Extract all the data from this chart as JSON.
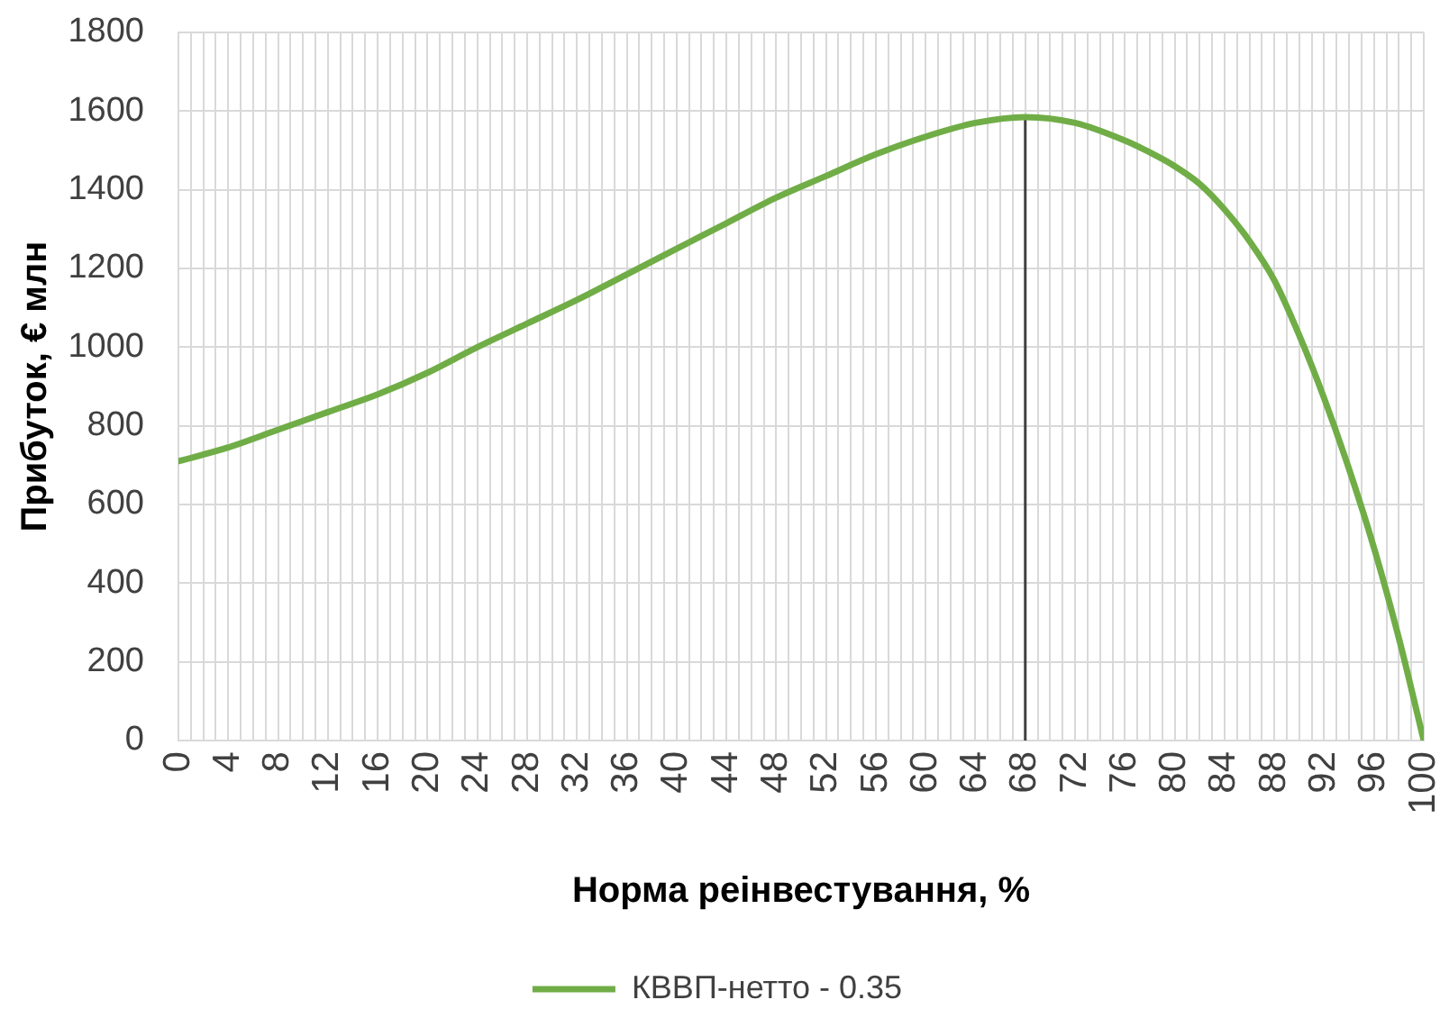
{
  "chart_data": {
    "type": "line",
    "xlabel": "Норма реінвестування, %",
    "ylabel": "Прибуток, € млн",
    "series": [
      {
        "name": "КВВП-нетто - 0.35",
        "color": "#70ad47",
        "x": [
          0,
          4,
          8,
          12,
          16,
          20,
          24,
          28,
          32,
          36,
          40,
          44,
          48,
          52,
          56,
          60,
          64,
          68,
          72,
          76,
          78,
          80,
          82,
          84,
          86,
          88,
          90,
          92,
          94,
          96,
          98,
          100
        ],
        "values": [
          710,
          745,
          790,
          835,
          880,
          935,
          1000,
          1060,
          1120,
          1185,
          1250,
          1315,
          1380,
          1435,
          1490,
          1535,
          1570,
          1585,
          1570,
          1525,
          1495,
          1460,
          1415,
          1350,
          1270,
          1170,
          1030,
          870,
          690,
          490,
          260,
          0
        ]
      },
      {
        "type": "line",
        "color": "#404040",
        "x": [
          68,
          68
        ],
        "values": [
          0,
          1585
        ]
      }
    ],
    "xlim": [
      0,
      100
    ],
    "xticks": [
      0,
      {
        "value": 1,
        "label": null
      },
      {
        "value": 2,
        "label": null
      },
      {
        "value": 3,
        "label": null
      },
      4,
      {
        "value": 5,
        "label": null
      },
      {
        "value": 6,
        "label": null
      },
      {
        "value": 7,
        "label": null
      },
      8,
      {
        "value": 9,
        "label": null
      },
      {
        "value": 10,
        "label": null
      },
      {
        "value": 11,
        "label": null
      },
      12,
      {
        "value": 13,
        "label": null
      },
      {
        "value": 14,
        "label": null
      },
      {
        "value": 15,
        "label": null
      },
      16,
      {
        "value": 17,
        "label": null
      },
      {
        "value": 18,
        "label": null
      },
      {
        "value": 19,
        "label": null
      },
      20,
      {
        "value": 21,
        "label": null
      },
      {
        "value": 22,
        "label": null
      },
      {
        "value": 23,
        "label": null
      },
      24,
      {
        "value": 25,
        "label": null
      },
      {
        "value": 26,
        "label": null
      },
      {
        "value": 27,
        "label": null
      },
      28,
      {
        "value": 29,
        "label": null
      },
      {
        "value": 30,
        "label": null
      },
      {
        "value": 31,
        "label": null
      },
      32,
      {
        "value": 33,
        "label": null
      },
      {
        "value": 34,
        "label": null
      },
      {
        "value": 35,
        "label": null
      },
      36,
      {
        "value": 37,
        "label": null
      },
      {
        "value": 38,
        "label": null
      },
      {
        "value": 39,
        "label": null
      },
      40,
      {
        "value": 41,
        "label": null
      },
      {
        "value": 42,
        "label": null
      },
      {
        "value": 43,
        "label": null
      },
      44,
      {
        "value": 45,
        "label": null
      },
      {
        "value": 46,
        "label": null
      },
      {
        "value": 47,
        "label": null
      },
      48,
      {
        "value": 49,
        "label": null
      },
      {
        "value": 50,
        "label": null
      },
      {
        "value": 51,
        "label": null
      },
      52,
      {
        "value": 53,
        "label": null
      },
      {
        "value": 54,
        "label": null
      },
      {
        "value": 55,
        "label": null
      },
      56,
      {
        "value": 57,
        "label": null
      },
      {
        "value": 58,
        "label": null
      },
      {
        "value": 59,
        "label": null
      },
      60,
      {
        "value": 61,
        "label": null
      },
      {
        "value": 62,
        "label": null
      },
      {
        "value": 63,
        "label": null
      },
      64,
      {
        "value": 65,
        "label": null
      },
      {
        "value": 66,
        "label": null
      },
      {
        "value": 67,
        "label": null
      },
      68,
      {
        "value": 69,
        "label": null
      },
      {
        "value": 70,
        "label": null
      },
      {
        "value": 71,
        "label": null
      },
      72,
      {
        "value": 73,
        "label": null
      },
      {
        "value": 74,
        "label": null
      },
      {
        "value": 75,
        "label": null
      },
      76,
      {
        "value": 77,
        "label": null
      },
      {
        "value": 78,
        "label": null
      },
      {
        "value": 79,
        "label": null
      },
      80,
      {
        "value": 81,
        "label": null
      },
      {
        "value": 82,
        "label": null
      },
      {
        "value": 83,
        "label": null
      },
      84,
      {
        "value": 85,
        "label": null
      },
      {
        "value": 86,
        "label": null
      },
      {
        "value": 87,
        "label": null
      },
      88,
      {
        "value": 89,
        "label": null
      },
      {
        "value": 90,
        "label": null
      },
      {
        "value": 91,
        "label": null
      },
      92,
      {
        "value": 93,
        "label": null
      },
      {
        "value": 94,
        "label": null
      },
      {
        "value": 95,
        "label": null
      },
      96,
      {
        "value": 97,
        "label": null
      },
      {
        "value": 98,
        "label": null
      },
      {
        "value": 99,
        "label": null
      },
      100
    ],
    "ylim": [
      0,
      1800
    ],
    "yticks": [
      0,
      200,
      400,
      600,
      800,
      1000,
      1200,
      1400,
      1600,
      1800
    ],
    "grid": true,
    "legend": "bottom",
    "marker": "none",
    "line_style": "solid"
  }
}
